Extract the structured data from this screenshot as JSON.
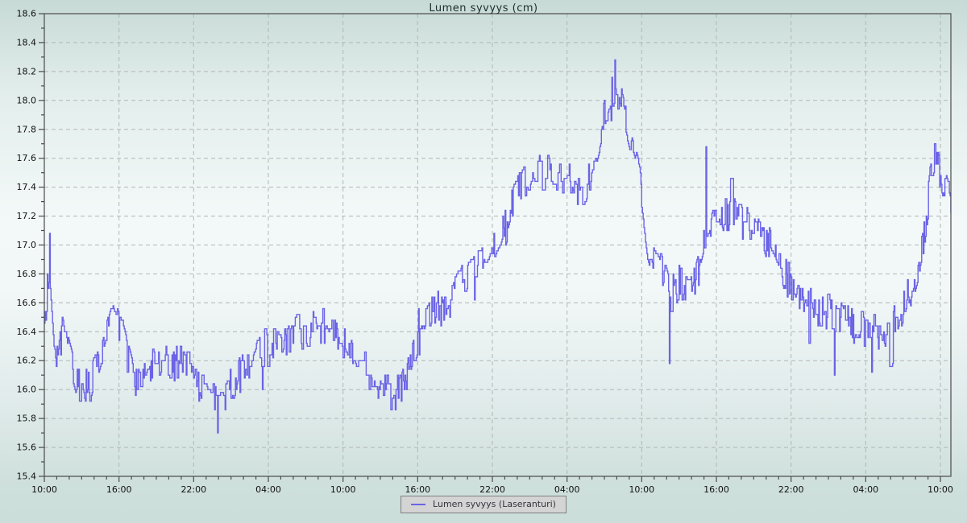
{
  "colors": {
    "series": "#6a63e6",
    "grid": "#b0b7b5",
    "axis": "#4a4a4a",
    "tick_label": "#111111",
    "title": "#1d2c2c",
    "legend_bg": "#d4d4d4",
    "legend_border": "#7f7f7f"
  },
  "chart_data": {
    "type": "line",
    "title": "Lumen syvyys (cm)",
    "unit": "cm",
    "grid": "dashed major gridlines on",
    "legend": {
      "position": "bottom-center",
      "entries": [
        {
          "label": "Lumen syvyys (Laseranturi)",
          "color": "#6a63e6"
        }
      ]
    },
    "x_axis": {
      "label": "",
      "kind": "time",
      "range_hours": [
        0,
        72.85
      ],
      "major_interval_hours": 6,
      "minor_interval_hours": 1,
      "tick_labels": [
        "10:00",
        "16:00",
        "22:00",
        "04:00",
        "10:00",
        "16:00",
        "22:00",
        "04:00",
        "10:00",
        "16:00",
        "22:00",
        "04:00",
        "10:00"
      ]
    },
    "y_axis": {
      "label": "",
      "min": 15.4,
      "max": 18.6,
      "major_step": 0.2,
      "minor_step": 0.1,
      "tick_labels": [
        "18.6",
        "18.4",
        "18.2",
        "18.0",
        "17.8",
        "17.6",
        "17.4",
        "17.2",
        "17.0",
        "16.8",
        "16.6",
        "16.4",
        "16.2",
        "16.0",
        "15.8",
        "15.6",
        "15.4"
      ]
    },
    "series": [
      {
        "name": "Lumen syvyys (Laseranturi)",
        "color": "#6a63e6",
        "description": "Noisy laser snow-depth trace; trend keypoints read from plot (hour offset from first 10:00, cm)",
        "noise_amplitude_cm": 0.13,
        "sample_interval_hours": 0.06,
        "trend_keypoints_hour_value": [
          [
            0,
            16.45
          ],
          [
            0.4,
            16.85
          ],
          [
            0.7,
            16.45
          ],
          [
            1.1,
            16.15
          ],
          [
            1.45,
            16.5
          ],
          [
            1.9,
            16.25
          ],
          [
            2.5,
            16.05
          ],
          [
            3.2,
            15.95
          ],
          [
            4,
            16.1
          ],
          [
            4.8,
            16.3
          ],
          [
            5.5,
            16.5
          ],
          [
            6.3,
            16.4
          ],
          [
            7,
            16.1
          ],
          [
            7.8,
            16.05
          ],
          [
            8.6,
            16.2
          ],
          [
            10,
            16.2
          ],
          [
            11.5,
            16.15
          ],
          [
            12.4,
            16.05
          ],
          [
            13.2,
            16.0
          ],
          [
            14,
            15.95
          ],
          [
            14.8,
            16.0
          ],
          [
            15.6,
            16.1
          ],
          [
            16.5,
            16.15
          ],
          [
            17.5,
            16.25
          ],
          [
            18.5,
            16.3
          ],
          [
            19.5,
            16.35
          ],
          [
            20.5,
            16.4
          ],
          [
            21.5,
            16.4
          ],
          [
            22.3,
            16.45
          ],
          [
            23.2,
            16.4
          ],
          [
            24,
            16.35
          ],
          [
            24.9,
            16.2
          ],
          [
            25.7,
            16.15
          ],
          [
            26.5,
            16.1
          ],
          [
            27.3,
            16.0
          ],
          [
            28.2,
            15.95
          ],
          [
            29,
            16.1
          ],
          [
            29.8,
            16.3
          ],
          [
            30.5,
            16.45
          ],
          [
            31.5,
            16.55
          ],
          [
            32.5,
            16.62
          ],
          [
            33.5,
            16.75
          ],
          [
            34.5,
            16.85
          ],
          [
            35.5,
            16.9
          ],
          [
            36.5,
            17.05
          ],
          [
            37.5,
            17.3
          ],
          [
            38.5,
            17.45
          ],
          [
            39.5,
            17.5
          ],
          [
            40.5,
            17.5
          ],
          [
            41.5,
            17.45
          ],
          [
            42.2,
            17.5
          ],
          [
            42.9,
            17.35
          ],
          [
            43.6,
            17.45
          ],
          [
            44.4,
            17.6
          ],
          [
            45,
            17.85
          ],
          [
            45.6,
            18.0
          ],
          [
            46.1,
            18.05
          ],
          [
            46.6,
            17.95
          ],
          [
            47.1,
            17.75
          ],
          [
            47.7,
            17.55
          ],
          [
            48.1,
            17.3
          ],
          [
            48.5,
            17.0
          ],
          [
            49.2,
            16.9
          ],
          [
            49.8,
            16.8
          ],
          [
            50.3,
            16.65
          ],
          [
            51,
            16.75
          ],
          [
            51.8,
            16.7
          ],
          [
            52.4,
            16.8
          ],
          [
            53,
            17.0
          ],
          [
            53.6,
            17.15
          ],
          [
            54.2,
            17.2
          ],
          [
            55.5,
            17.2
          ],
          [
            56.5,
            17.15
          ],
          [
            57.5,
            17.1
          ],
          [
            58.2,
            17.0
          ],
          [
            58.8,
            16.9
          ],
          [
            59.5,
            16.8
          ],
          [
            60,
            16.72
          ],
          [
            61,
            16.6
          ],
          [
            62,
            16.55
          ],
          [
            63,
            16.55
          ],
          [
            64,
            16.5
          ],
          [
            65,
            16.45
          ],
          [
            66,
            16.4
          ],
          [
            67,
            16.4
          ],
          [
            68,
            16.42
          ],
          [
            69,
            16.55
          ],
          [
            70,
            16.75
          ],
          [
            70.6,
            17.0
          ],
          [
            71.2,
            17.45
          ],
          [
            71.7,
            17.55
          ],
          [
            72.2,
            17.45
          ],
          [
            72.9,
            17.25
          ]
        ],
        "outlier_spikes_hour_value": [
          [
            0.42,
            17.08
          ],
          [
            13.9,
            15.69
          ],
          [
            45.82,
            18.28
          ],
          [
            50.2,
            16.18
          ],
          [
            53.15,
            17.68
          ],
          [
            63.5,
            16.1
          ],
          [
            66.5,
            16.12
          ],
          [
            71.55,
            17.7
          ]
        ]
      }
    ]
  }
}
